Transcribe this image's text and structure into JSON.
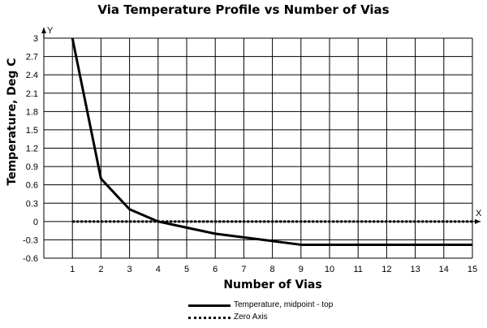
{
  "chart_data": {
    "type": "line",
    "title": "Via Temperature Profile vs Number of Vias",
    "xlabel": "Number of Vias",
    "ylabel": "Temperature, Deg C",
    "x_axis_letter": "X",
    "y_axis_letter": "Y",
    "xlim": [
      0,
      15
    ],
    "ylim": [
      -0.6,
      3
    ],
    "x_ticks": [
      "1",
      "2",
      "3",
      "4",
      "5",
      "6",
      "7",
      "8",
      "9",
      "10",
      "11",
      "12",
      "13",
      "14",
      "15"
    ],
    "y_ticks": [
      "3",
      "2.7",
      "2.4",
      "2.1",
      "1.8",
      "1.5",
      "1.2",
      "0.9",
      "0.6",
      "0.3",
      "0",
      "-0.3",
      "-0.6"
    ],
    "grid": true,
    "legend_position": "bottom",
    "series": [
      {
        "name": "Temperature, midpoint - top",
        "style": "solid",
        "color": "#000000",
        "x": [
          1,
          2,
          3,
          4,
          5,
          6,
          7,
          8,
          9,
          10,
          11,
          12,
          13,
          14,
          15
        ],
        "y": [
          3.0,
          0.7,
          0.2,
          0.0,
          -0.1,
          -0.2,
          -0.26,
          -0.32,
          -0.38,
          -0.38,
          -0.38,
          -0.38,
          -0.38,
          -0.38,
          -0.38
        ]
      },
      {
        "name": "Zero Axis",
        "style": "dotted",
        "color": "#000000",
        "x": [
          1,
          15
        ],
        "y": [
          0,
          0
        ]
      }
    ]
  }
}
